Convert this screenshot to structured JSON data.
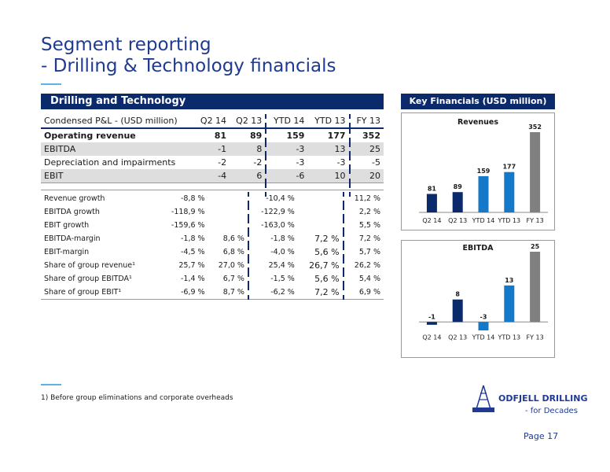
{
  "title": {
    "line1": "Segment reporting",
    "line2": "- Drilling & Technology financials"
  },
  "section": {
    "label": "Drilling and Technology"
  },
  "pl_table": {
    "headers": [
      "Condensed P&L - (USD million)",
      "Q2 14",
      "Q2 13",
      "YTD 14",
      "YTD 13",
      "FY 13"
    ],
    "rows": [
      {
        "label": "Operating revenue",
        "values": [
          "81",
          "89",
          "159",
          "177",
          "352"
        ]
      },
      {
        "label": "EBITDA",
        "values": [
          "-1",
          "8",
          "-3",
          "13",
          "25"
        ]
      },
      {
        "label": "Depreciation and impairments",
        "values": [
          "-2",
          "-2",
          "-3",
          "-3",
          "-5"
        ]
      },
      {
        "label": "EBIT",
        "values": [
          "-4",
          "6",
          "-6",
          "10",
          "20"
        ]
      }
    ]
  },
  "kpi_table": {
    "rows": [
      {
        "label": "Revenue growth",
        "values": [
          "-8,8 %",
          "",
          "-10,4 %",
          "",
          "11,2 %"
        ]
      },
      {
        "label": "EBITDA growth",
        "values": [
          "-118,9 %",
          "",
          "-122,9 %",
          "",
          "2,2 %"
        ]
      },
      {
        "label": "EBIT growth",
        "values": [
          "-159,6 %",
          "",
          "-163,0 %",
          "",
          "5,5 %"
        ]
      },
      {
        "label": "EBITDA-margin",
        "values": [
          "-1,8 %",
          "8,6 %",
          "-1,8 %",
          "7,2 %",
          "7,2 %"
        ]
      },
      {
        "label": "EBIT-margin",
        "values": [
          "-4,5 %",
          "6,8 %",
          "-4,0 %",
          "5,6 %",
          "5,7 %"
        ]
      },
      {
        "label": "Share of group revenue¹",
        "values": [
          "25,7 %",
          "27,0 %",
          "25,4 %",
          "26,7 %",
          "26,2 %"
        ]
      },
      {
        "label": "Share of group EBITDA¹",
        "values": [
          "-1,4 %",
          "6,7 %",
          "-1,5 %",
          "5,6 %",
          "5,4 %"
        ]
      },
      {
        "label": "Share of group EBIT¹",
        "values": [
          "-6,9 %",
          "8,7 %",
          "-6,2 %",
          "7,2 %",
          "6,9 %"
        ]
      }
    ]
  },
  "key_financials": {
    "label": "Key Financials (USD million)"
  },
  "chart_data": [
    {
      "type": "bar",
      "title": "Revenues",
      "categories": [
        "Q2 14",
        "Q2 13",
        "YTD 14",
        "YTD 13",
        "FY 13"
      ],
      "values": [
        81,
        89,
        159,
        177,
        352
      ],
      "colors": [
        "#0b2a6b",
        "#0b2a6b",
        "#1479c9",
        "#1479c9",
        "#808080"
      ],
      "ylim": [
        0,
        352
      ]
    },
    {
      "type": "bar",
      "title": "EBITDA",
      "categories": [
        "Q2 14",
        "Q2 13",
        "YTD 14",
        "YTD 13",
        "FY 13"
      ],
      "values": [
        -1,
        8,
        -3,
        13,
        25
      ],
      "colors": [
        "#0b2a6b",
        "#0b2a6b",
        "#1479c9",
        "#1479c9",
        "#808080"
      ],
      "ylim": [
        -3,
        25
      ]
    }
  ],
  "footnote": "1) Before group eliminations and corporate overheads",
  "logo": {
    "name": "ODFJELL DRILLING",
    "tagline": "- for Decades"
  },
  "page_label": "Page 17"
}
